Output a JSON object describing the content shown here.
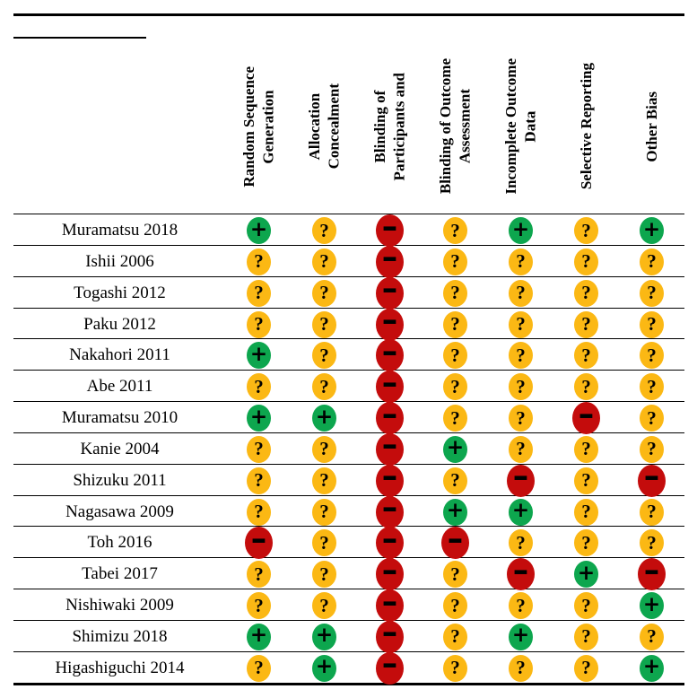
{
  "figure": {
    "type": "risk-of-bias-summary-table",
    "colors": {
      "low_risk": "#0da64e",
      "unclear_risk": "#fbb814",
      "high_risk": "#c40c0c",
      "rule": "#000000",
      "background": "#ffffff"
    },
    "symbols": {
      "low": "+",
      "unclear": "?",
      "high": "−"
    },
    "columns": [
      {
        "label": "Random Sequence\nGeneration"
      },
      {
        "label": "Allocation\nConcealment"
      },
      {
        "label": "Blinding of\nParticipants and"
      },
      {
        "label": "Blinding of Outcome\nAssessment"
      },
      {
        "label": "Incomplete Outcome\nData"
      },
      {
        "label": "Selective Reporting"
      },
      {
        "label": "Other Bias"
      }
    ],
    "rows": [
      {
        "study": "Muramatsu 2018",
        "judgments": [
          "+",
          "?",
          "−",
          "?",
          "+",
          "?",
          "+"
        ]
      },
      {
        "study": "Ishii 2006",
        "judgments": [
          "?",
          "?",
          "−",
          "?",
          "?",
          "?",
          "?"
        ]
      },
      {
        "study": "Togashi 2012",
        "judgments": [
          "?",
          "?",
          "−",
          "?",
          "?",
          "?",
          "?"
        ]
      },
      {
        "study": "Paku 2012",
        "judgments": [
          "?",
          "?",
          "−",
          "?",
          "?",
          "?",
          "?"
        ]
      },
      {
        "study": "Nakahori 2011",
        "judgments": [
          "+",
          "?",
          "−",
          "?",
          "?",
          "?",
          "?"
        ]
      },
      {
        "study": "Abe 2011",
        "judgments": [
          "?",
          "?",
          "−",
          "?",
          "?",
          "?",
          "?"
        ]
      },
      {
        "study": "Muramatsu 2010",
        "judgments": [
          "+",
          "+",
          "−",
          "?",
          "?",
          "−",
          "?"
        ]
      },
      {
        "study": "Kanie 2004",
        "judgments": [
          "?",
          "?",
          "−",
          "+",
          "?",
          "?",
          "?"
        ]
      },
      {
        "study": "Shizuku 2011",
        "judgments": [
          "?",
          "?",
          "−",
          "?",
          "−",
          "?",
          "−"
        ]
      },
      {
        "study": "Nagasawa 2009",
        "judgments": [
          "?",
          "?",
          "−",
          "+",
          "+",
          "?",
          "?"
        ]
      },
      {
        "study": "Toh 2016",
        "judgments": [
          "−",
          "?",
          "−",
          "−",
          "?",
          "?",
          "?"
        ]
      },
      {
        "study": "Tabei 2017",
        "judgments": [
          "?",
          "?",
          "−",
          "?",
          "−",
          "+",
          "−"
        ]
      },
      {
        "study": "Nishiwaki 2009",
        "judgments": [
          "?",
          "?",
          "−",
          "?",
          "?",
          "?",
          "+"
        ]
      },
      {
        "study": "Shimizu 2018",
        "judgments": [
          "+",
          "+",
          "−",
          "?",
          "+",
          "?",
          "?"
        ]
      },
      {
        "study": "Higashiguchi 2014",
        "judgments": [
          "?",
          "+",
          "−",
          "?",
          "?",
          "?",
          "+"
        ]
      }
    ]
  }
}
